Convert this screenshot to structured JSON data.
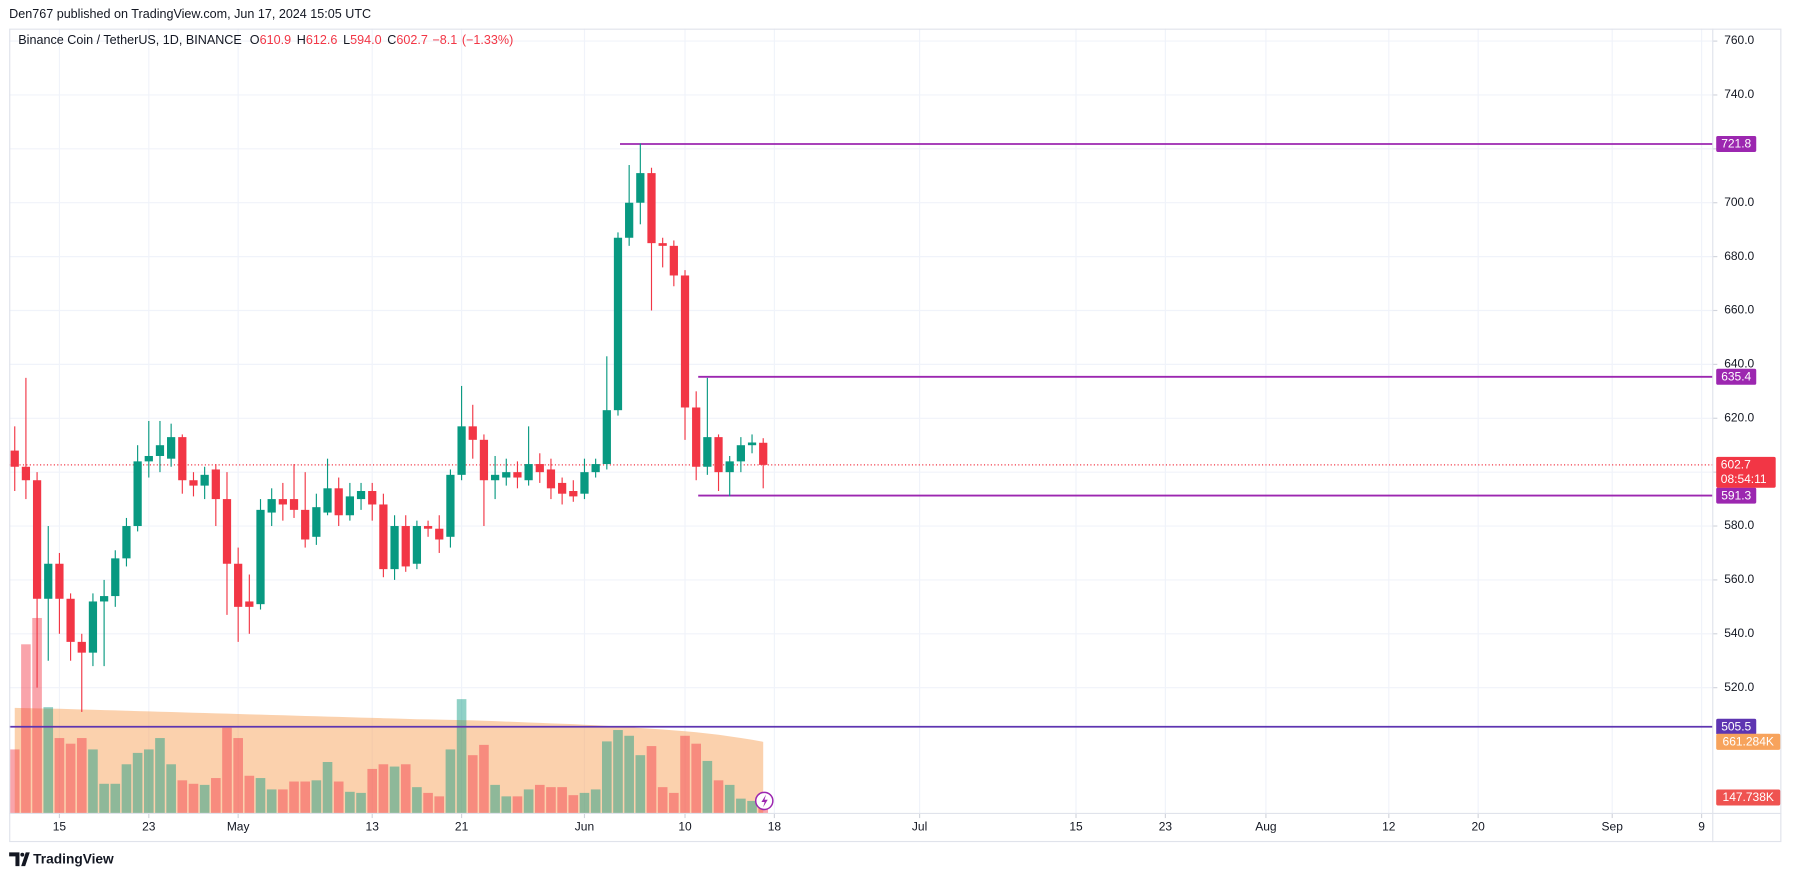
{
  "header": "Den767 published on TradingView.com, Jun 17, 2024 15:05 UTC",
  "footer": "TradingView",
  "chart_data": {
    "type": "candlestick",
    "title": "Binance Coin / TetherUS, 1D, BINANCE",
    "legend_labels": [
      "O",
      "H",
      "L",
      "C"
    ],
    "last_labels": {
      "open": "610.9",
      "high": "612.6",
      "low": "594.0",
      "close": "602.7"
    },
    "change": {
      "value": -8.1,
      "label": "−8.1"
    },
    "change_pct": {
      "value": -1.33,
      "label": "(−1.33%)"
    },
    "countdown": "08:54:11",
    "up_color": "#089981",
    "down_color": "#f23645",
    "x": [
      "2024-04-11",
      "2024-04-12",
      "2024-04-13",
      "2024-04-14",
      "2024-04-15",
      "2024-04-16",
      "2024-04-17",
      "2024-04-18",
      "2024-04-19",
      "2024-04-20",
      "2024-04-21",
      "2024-04-22",
      "2024-04-23",
      "2024-04-24",
      "2024-04-25",
      "2024-04-26",
      "2024-04-27",
      "2024-04-28",
      "2024-04-29",
      "2024-04-30",
      "2024-05-01",
      "2024-05-02",
      "2024-05-03",
      "2024-05-04",
      "2024-05-05",
      "2024-05-06",
      "2024-05-07",
      "2024-05-08",
      "2024-05-09",
      "2024-05-10",
      "2024-05-11",
      "2024-05-12",
      "2024-05-13",
      "2024-05-14",
      "2024-05-15",
      "2024-05-16",
      "2024-05-17",
      "2024-05-18",
      "2024-05-19",
      "2024-05-20",
      "2024-05-21",
      "2024-05-22",
      "2024-05-23",
      "2024-05-24",
      "2024-05-25",
      "2024-05-26",
      "2024-05-27",
      "2024-05-28",
      "2024-05-29",
      "2024-05-30",
      "2024-05-31",
      "2024-06-01",
      "2024-06-02",
      "2024-06-03",
      "2024-06-04",
      "2024-06-05",
      "2024-06-06",
      "2024-06-07",
      "2024-06-08",
      "2024-06-09",
      "2024-06-10",
      "2024-06-11",
      "2024-06-12",
      "2024-06-13",
      "2024-06-14",
      "2024-06-15",
      "2024-06-16",
      "2024-06-17"
    ],
    "open": [
      608,
      602,
      597,
      553,
      566,
      553,
      537,
      533,
      552,
      554,
      568,
      580,
      604,
      606,
      605,
      613,
      597,
      595,
      601,
      590,
      566,
      552,
      551,
      585,
      590,
      590,
      586,
      576,
      585,
      594,
      584,
      590,
      593,
      588,
      564,
      580,
      566,
      580,
      579,
      576,
      599,
      617,
      612,
      597,
      598,
      600,
      597,
      603,
      601,
      596,
      593,
      592,
      600,
      603,
      623,
      687,
      700,
      711,
      685,
      684,
      673,
      624,
      602,
      613,
      600,
      604,
      610,
      610.9
    ],
    "high": [
      617,
      635,
      600,
      580,
      570,
      555,
      540,
      555,
      560,
      571,
      583,
      610,
      619,
      619,
      618,
      614,
      600,
      602,
      603,
      600,
      572,
      562,
      590,
      594,
      596,
      603,
      600,
      592,
      605,
      598,
      596,
      596,
      596,
      592,
      584,
      584,
      582,
      582,
      584,
      601,
      632,
      625,
      614,
      606,
      605,
      604,
      617,
      607,
      605,
      598,
      597,
      605,
      605,
      643,
      689,
      714,
      722,
      713,
      687,
      686,
      675,
      630,
      635,
      614,
      606,
      613,
      614,
      612.6
    ],
    "low": [
      593,
      590,
      520,
      530,
      540,
      530,
      511,
      528,
      528,
      550,
      565,
      578,
      598,
      600,
      602,
      592,
      591,
      590,
      580,
      547,
      537,
      540,
      549,
      580,
      582,
      583,
      572,
      573,
      584,
      580,
      582,
      586,
      582,
      561,
      560,
      563,
      564,
      576,
      570,
      572,
      597,
      605,
      580,
      590,
      595,
      594,
      595,
      596,
      590,
      588,
      589,
      590,
      598,
      601,
      621,
      684,
      692,
      660,
      676,
      669,
      612,
      597,
      599,
      593,
      591,
      600,
      607,
      594
    ],
    "close": [
      602,
      597,
      553,
      566,
      553,
      537,
      533,
      552,
      554,
      568,
      580,
      604,
      606,
      610,
      613,
      597,
      595,
      599,
      590,
      566,
      550,
      550,
      586,
      590,
      588,
      586,
      575,
      587,
      594,
      584,
      591,
      593,
      588,
      564,
      580,
      565,
      580,
      579,
      575,
      599,
      617,
      612,
      597,
      599,
      600,
      598,
      603,
      600,
      594,
      592,
      591,
      600,
      603,
      623,
      687,
      700,
      711,
      685,
      684,
      673,
      624,
      602,
      613,
      600,
      604,
      610,
      611,
      602.7
    ],
    "volume": {
      "values": [
        591,
        1561,
        1804,
        981,
        696,
        644,
        696,
        591,
        274,
        274,
        454,
        559,
        591,
        696,
        454,
        306,
        274,
        264,
        327,
        791,
        696,
        348,
        327,
        222,
        222,
        295,
        295,
        306,
        475,
        295,
        200,
        190,
        411,
        454,
        433,
        454,
        243,
        190,
        158,
        591,
        1055,
        538,
        633,
        264,
        158,
        158,
        222,
        264,
        243,
        243,
        169,
        190,
        222,
        665,
        770,
        717,
        538,
        622,
        243,
        190,
        717,
        644,
        485,
        306,
        264,
        137,
        116,
        147.738
      ],
      "last_label": "147.738K"
    },
    "volume_ma": {
      "values": [
        975,
        972,
        970,
        968,
        966,
        963,
        960,
        957,
        954,
        951,
        948,
        945,
        942,
        939,
        936,
        933,
        930,
        927,
        924,
        921,
        918,
        915,
        912,
        909,
        906,
        903,
        900,
        897,
        894,
        891,
        888,
        885,
        882,
        879,
        876,
        873,
        870,
        868,
        866,
        864,
        862,
        859,
        856,
        852,
        848,
        844,
        840,
        836,
        832,
        828,
        824,
        819,
        814,
        808,
        802,
        796,
        789,
        782,
        775,
        767,
        759,
        749,
        738,
        726,
        712,
        697,
        680,
        661.284
      ],
      "color": "#f7a35c",
      "last_label": "661.284K"
    },
    "levels": [
      {
        "value": 721.8,
        "color": "#9c27b0"
      },
      {
        "value": 635.4,
        "color": "#9c27b0"
      },
      {
        "value": 591.3,
        "color": "#9c27b0"
      },
      {
        "value": 505.5,
        "color": "#5e35b1"
      }
    ],
    "xlim": [
      "2024-04-10T12:00:00Z",
      "2024-09-10T00:00:00Z"
    ],
    "ylim": [
      473.3,
      771.0
    ],
    "y2lim": [
      0,
      7400
    ],
    "yticks": [
      {
        "value": 520,
        "label": "520.0"
      },
      {
        "value": 540,
        "label": "540.0"
      },
      {
        "value": 560,
        "label": "560.0"
      },
      {
        "value": 580,
        "label": "580.0"
      },
      {
        "value": 600,
        "label": "600.0"
      },
      {
        "value": 620,
        "label": "620.0"
      },
      {
        "value": 640,
        "label": "640.0"
      },
      {
        "value": 660,
        "label": "660.0"
      },
      {
        "value": 680,
        "label": "680.0"
      },
      {
        "value": 700,
        "label": "700.0"
      },
      {
        "value": 720,
        "label": "720.0"
      },
      {
        "value": 740,
        "label": "740.0"
      },
      {
        "value": 760,
        "label": "760.0"
      }
    ],
    "xticks": [
      {
        "value": "2024-04-15",
        "label": "15"
      },
      {
        "value": "2024-04-23",
        "label": "23"
      },
      {
        "value": "2024-05-01",
        "label": "May"
      },
      {
        "value": "2024-05-13",
        "label": "13"
      },
      {
        "value": "2024-05-21",
        "label": "21"
      },
      {
        "value": "2024-06-01",
        "label": "Jun"
      },
      {
        "value": "2024-06-10",
        "label": "10"
      },
      {
        "value": "2024-06-18",
        "label": "18"
      },
      {
        "value": "2024-07-01",
        "label": "Jul"
      },
      {
        "value": "2024-07-15",
        "label": "15"
      },
      {
        "value": "2024-07-23",
        "label": "23"
      },
      {
        "value": "2024-08-01",
        "label": "Aug"
      },
      {
        "value": "2024-08-12",
        "label": "12"
      },
      {
        "value": "2024-08-20",
        "label": "20"
      },
      {
        "value": "2024-09-01",
        "label": "Sep"
      },
      {
        "value": "2024-09-09",
        "label": "9"
      }
    ],
    "grid": true
  }
}
